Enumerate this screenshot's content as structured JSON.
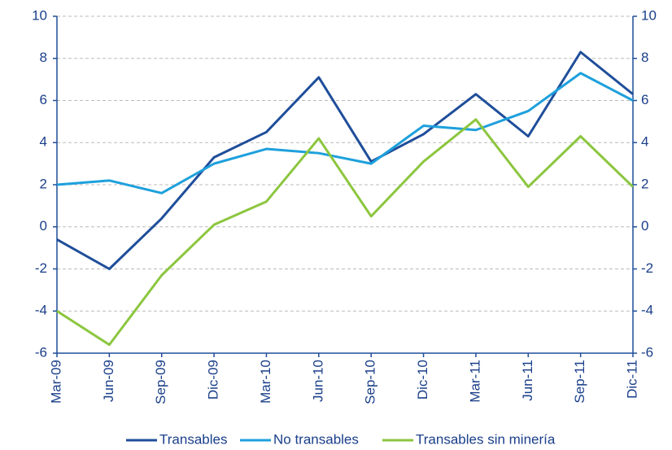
{
  "chart_data": {
    "type": "line",
    "categories": [
      "Mar-09",
      "Jun-09",
      "Sep-09",
      "Dic-09",
      "Mar-10",
      "Jun-10",
      "Sep-10",
      "Dic-10",
      "Mar-11",
      "Jun-11",
      "Sep-11",
      "Dic-11"
    ],
    "series": [
      {
        "name": "Transables",
        "color": "#1f4e9a",
        "values": [
          -0.6,
          -2.0,
          0.4,
          3.3,
          4.5,
          7.1,
          3.1,
          4.4,
          6.3,
          4.3,
          8.3,
          6.3
        ]
      },
      {
        "name": "No transables",
        "color": "#1ea0dc",
        "values": [
          2.0,
          2.2,
          1.6,
          3.0,
          3.7,
          3.5,
          3.0,
          4.8,
          4.6,
          5.5,
          7.3,
          6.0
        ]
      },
      {
        "name": "Transables sin minería",
        "color": "#8cc63f",
        "values": [
          -4.0,
          -5.6,
          -2.3,
          0.1,
          1.2,
          4.2,
          0.5,
          3.1,
          5.1,
          1.9,
          4.3,
          1.9
        ]
      }
    ],
    "ylim": [
      -6,
      10
    ],
    "yticks": [
      -6,
      -4,
      -2,
      0,
      2,
      4,
      6,
      8,
      10
    ],
    "y2lim": [
      -6,
      10
    ],
    "y2ticks": [
      -6,
      -4,
      -2,
      0,
      2,
      4,
      6,
      8,
      10
    ],
    "grid": true,
    "legend": "bottom"
  }
}
